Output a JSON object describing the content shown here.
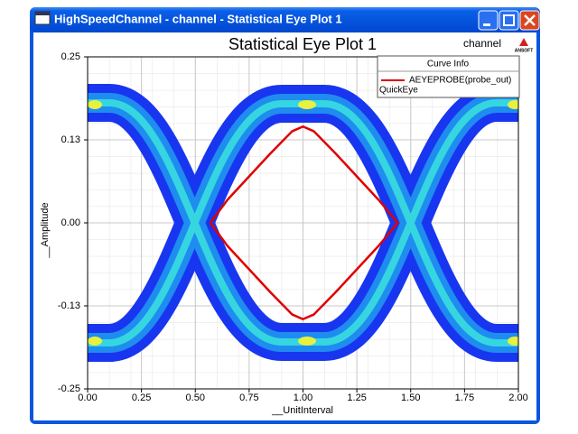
{
  "window": {
    "title": "HighSpeedChannel - channel - Statistical Eye Plot 1"
  },
  "chart_data": {
    "type": "line",
    "title": "Statistical Eye Plot 1",
    "subtitle": "channel",
    "logo": "ANSOFT",
    "x_label": "__UnitInterval",
    "y_label": "__Amplitude",
    "legend_title": "Curve Info",
    "legend_note": "QuickEye",
    "x": [
      0.57,
      0.65,
      0.75,
      0.85,
      0.95,
      1.0,
      1.05,
      1.15,
      1.25,
      1.35,
      1.44,
      1.35,
      1.25,
      1.15,
      1.05,
      1.0,
      0.95,
      0.85,
      0.75,
      0.65,
      0.57
    ],
    "series": [
      {
        "name": "AEYEPROBE(probe_out)",
        "color": "#e00000",
        "values": [
          0,
          0.035,
          0.07,
          0.105,
          0.138,
          0.145,
          0.138,
          0.105,
          0.07,
          0.035,
          0,
          -0.035,
          -0.07,
          -0.105,
          -0.138,
          -0.145,
          -0.138,
          -0.105,
          -0.07,
          -0.035,
          0
        ]
      }
    ],
    "xlim": [
      0,
      2
    ],
    "ylim": [
      -0.25,
      0.25
    ],
    "xticks": [
      {
        "value": 0,
        "label": "0.00"
      },
      0.25,
      {
        "value": 0.5,
        "label": "0.50"
      },
      0.75,
      {
        "value": 1,
        "label": "1.00"
      },
      1.25,
      {
        "value": 1.5,
        "label": "1.50"
      },
      1.75,
      {
        "value": 2,
        "label": "2.00"
      }
    ],
    "yticks": [
      -0.25,
      {
        "value": -0.125,
        "label": "-0.13"
      },
      {
        "value": 0,
        "label": "0.00"
      },
      {
        "value": 0.125,
        "label": "0.13"
      },
      0.25
    ],
    "grid": true
  }
}
